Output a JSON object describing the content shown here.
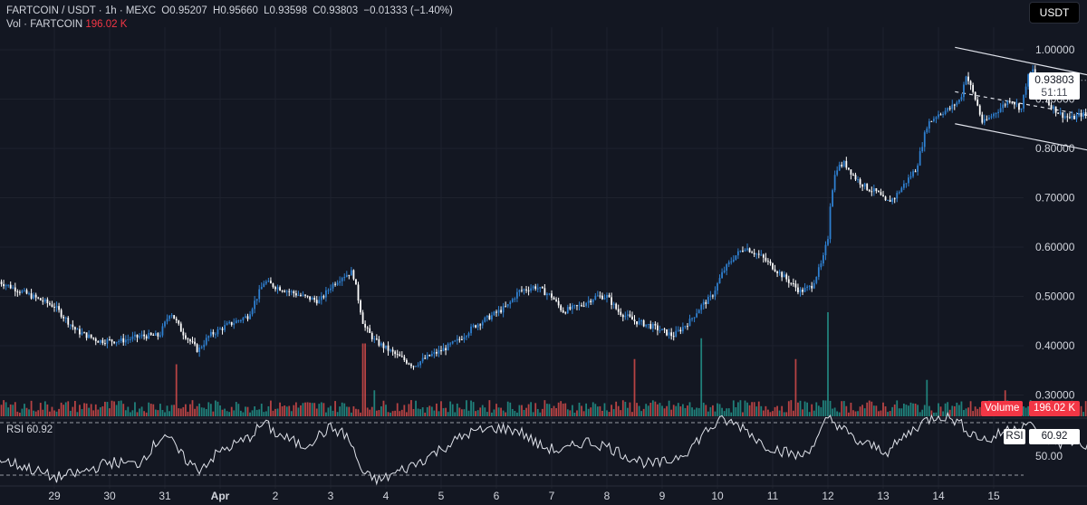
{
  "header": {
    "symbol": "FARTCOIN / USDT · 1h · MEXC",
    "open_label": "O",
    "open": "0.95207",
    "high_label": "H",
    "high": "0.95660",
    "low_label": "L",
    "low": "0.93598",
    "close_label": "C",
    "close": "0.93803",
    "change": "−0.01333 (−1.40%)",
    "volume_label": "Vol · FARTCOIN",
    "volume_value": "196.02 K"
  },
  "currency_button": "USDT",
  "last_price_tag": "0.93803",
  "countdown": "51:11",
  "volume_axis_label": "Volume",
  "volume_axis_value": "196.02 K",
  "rsi": {
    "name": "RSI",
    "value": "60.92",
    "axis_tick": "50.00"
  },
  "colors": {
    "background": "#131722",
    "up": "#2f80d1",
    "down": "#ffffff",
    "vol_up": "#26a69a",
    "vol_down": "#ef5350",
    "grid": "#1e222d",
    "text": "#d1d4dc"
  },
  "chart_data": {
    "type": "candlestick",
    "pair": "FARTCOIN / USDT",
    "interval": "1h",
    "exchange": "MEXC",
    "ylim": [
      0.28,
      1.05
    ],
    "y_ticks": [
      "1.00000",
      "0.90000",
      "0.80000",
      "0.70000",
      "0.60000",
      "0.50000",
      "0.40000",
      "0.30000"
    ],
    "x_ticks": [
      "29",
      "30",
      "31",
      "Apr",
      "2",
      "3",
      "4",
      "5",
      "6",
      "7",
      "8",
      "9",
      "10",
      "11",
      "12",
      "13",
      "14",
      "15"
    ],
    "x_range_days": [
      28.0,
      15.1
    ],
    "price_path": [
      [
        28.0,
        0.53
      ],
      [
        28.6,
        0.5
      ],
      [
        29.0,
        0.48
      ],
      [
        29.4,
        0.43
      ],
      [
        29.8,
        0.41
      ],
      [
        30.2,
        0.41
      ],
      [
        30.6,
        0.42
      ],
      [
        30.9,
        0.42
      ],
      [
        31.1,
        0.47
      ],
      [
        31.3,
        0.43
      ],
      [
        31.6,
        0.39
      ],
      [
        31.8,
        0.42
      ],
      [
        32.1,
        0.44
      ],
      [
        32.5,
        0.46
      ],
      [
        32.8,
        0.53
      ],
      [
        33.0,
        0.52
      ],
      [
        33.5,
        0.5
      ],
      [
        33.8,
        0.49
      ],
      [
        34.0,
        0.52
      ],
      [
        34.2,
        0.54
      ],
      [
        34.4,
        0.55
      ],
      [
        34.6,
        0.44
      ],
      [
        34.8,
        0.41
      ],
      [
        35.2,
        0.38
      ],
      [
        35.5,
        0.36
      ],
      [
        35.8,
        0.38
      ],
      [
        36.0,
        0.39
      ],
      [
        36.3,
        0.41
      ],
      [
        36.6,
        0.44
      ],
      [
        36.9,
        0.46
      ],
      [
        37.2,
        0.48
      ],
      [
        37.4,
        0.51
      ],
      [
        37.7,
        0.52
      ],
      [
        38.0,
        0.5
      ],
      [
        38.2,
        0.47
      ],
      [
        38.5,
        0.48
      ],
      [
        38.8,
        0.5
      ],
      [
        39.0,
        0.5
      ],
      [
        39.2,
        0.47
      ],
      [
        39.5,
        0.45
      ],
      [
        39.8,
        0.44
      ],
      [
        40.0,
        0.43
      ],
      [
        40.2,
        0.42
      ],
      [
        40.5,
        0.45
      ],
      [
        40.7,
        0.48
      ],
      [
        40.9,
        0.5
      ],
      [
        41.1,
        0.55
      ],
      [
        41.3,
        0.58
      ],
      [
        41.5,
        0.6
      ],
      [
        41.8,
        0.58
      ],
      [
        42.0,
        0.56
      ],
      [
        42.3,
        0.53
      ],
      [
        42.5,
        0.51
      ],
      [
        42.7,
        0.52
      ],
      [
        42.9,
        0.57
      ],
      [
        43.0,
        0.62
      ],
      [
        43.05,
        0.7
      ],
      [
        43.15,
        0.76
      ],
      [
        43.3,
        0.77
      ],
      [
        43.5,
        0.74
      ],
      [
        43.7,
        0.72
      ],
      [
        43.9,
        0.71
      ],
      [
        44.05,
        0.69
      ],
      [
        44.2,
        0.7
      ],
      [
        44.4,
        0.73
      ],
      [
        44.6,
        0.76
      ],
      [
        44.8,
        0.85
      ],
      [
        45.0,
        0.87
      ],
      [
        45.2,
        0.88
      ],
      [
        45.4,
        0.9
      ],
      [
        45.5,
        0.95
      ],
      [
        45.6,
        0.92
      ],
      [
        45.7,
        0.89
      ],
      [
        45.8,
        0.85
      ],
      [
        45.9,
        0.86
      ],
      [
        46.1,
        0.88
      ],
      [
        46.3,
        0.9
      ],
      [
        46.5,
        0.88
      ],
      [
        46.6,
        0.94
      ],
      [
        46.7,
        0.96
      ],
      [
        46.9,
        0.92
      ],
      [
        47.0,
        0.89
      ],
      [
        47.2,
        0.87
      ],
      [
        47.4,
        0.86
      ],
      [
        47.6,
        0.87
      ],
      [
        47.8,
        0.86
      ],
      [
        48.0,
        0.83
      ],
      [
        48.1,
        0.8
      ],
      [
        48.2,
        0.79
      ],
      [
        48.35,
        0.81
      ],
      [
        48.5,
        0.84
      ],
      [
        48.7,
        0.86
      ],
      [
        48.8,
        0.87
      ],
      [
        49.0,
        0.85
      ],
      [
        49.1,
        0.88
      ],
      [
        49.25,
        0.93
      ],
      [
        49.4,
        0.88
      ],
      [
        49.5,
        0.92
      ],
      [
        49.6,
        0.94
      ],
      [
        49.7,
        0.94
      ]
    ],
    "volume_spikes": [
      [
        31.2,
        0.5
      ],
      [
        34.6,
        0.7
      ],
      [
        34.8,
        0.25
      ],
      [
        39.5,
        0.55
      ],
      [
        40.7,
        0.75
      ],
      [
        42.4,
        0.55
      ],
      [
        43.0,
        1.0
      ],
      [
        44.8,
        0.35
      ],
      [
        46.2,
        0.25
      ],
      [
        48.6,
        0.3
      ]
    ],
    "volume_current": "196.02 K",
    "channel": {
      "upper": [
        [
          45.3,
          1.005
        ],
        [
          49.8,
          0.9
        ]
      ],
      "middle": [
        [
          45.3,
          0.915
        ],
        [
          49.8,
          0.825
        ]
      ],
      "lower": [
        [
          45.3,
          0.85
        ],
        [
          49.8,
          0.75
        ]
      ]
    },
    "rsi_series": {
      "name": "RSI",
      "levels": [
        70,
        30
      ],
      "last": 60.92,
      "anchors": [
        [
          28.0,
          42
        ],
        [
          28.5,
          36
        ],
        [
          29.0,
          28
        ],
        [
          29.5,
          32
        ],
        [
          30.0,
          40
        ],
        [
          30.5,
          38
        ],
        [
          31.0,
          62
        ],
        [
          31.3,
          45
        ],
        [
          31.6,
          34
        ],
        [
          32.0,
          48
        ],
        [
          32.5,
          58
        ],
        [
          32.8,
          70
        ],
        [
          33.0,
          62
        ],
        [
          33.5,
          52
        ],
        [
          34.0,
          66
        ],
        [
          34.3,
          60
        ],
        [
          34.6,
          30
        ],
        [
          34.9,
          26
        ],
        [
          35.2,
          32
        ],
        [
          35.6,
          40
        ],
        [
          36.0,
          50
        ],
        [
          36.5,
          62
        ],
        [
          37.0,
          66
        ],
        [
          37.4,
          64
        ],
        [
          37.8,
          52
        ],
        [
          38.2,
          48
        ],
        [
          38.6,
          56
        ],
        [
          39.0,
          52
        ],
        [
          39.4,
          44
        ],
        [
          39.8,
          38
        ],
        [
          40.1,
          40
        ],
        [
          40.5,
          50
        ],
        [
          40.8,
          64
        ],
        [
          41.1,
          72
        ],
        [
          41.5,
          66
        ],
        [
          41.8,
          54
        ],
        [
          42.2,
          48
        ],
        [
          42.5,
          44
        ],
        [
          42.8,
          56
        ],
        [
          43.0,
          74
        ],
        [
          43.2,
          68
        ],
        [
          43.5,
          56
        ],
        [
          43.8,
          52
        ],
        [
          44.1,
          48
        ],
        [
          44.4,
          60
        ],
        [
          44.7,
          70
        ],
        [
          45.0,
          76
        ],
        [
          45.3,
          72
        ],
        [
          45.6,
          62
        ],
        [
          45.9,
          56
        ],
        [
          46.2,
          64
        ],
        [
          46.6,
          70
        ],
        [
          46.9,
          58
        ],
        [
          47.2,
          54
        ],
        [
          47.5,
          56
        ],
        [
          47.9,
          48
        ],
        [
          48.2,
          40
        ],
        [
          48.5,
          52
        ],
        [
          48.8,
          56
        ],
        [
          49.1,
          50
        ],
        [
          49.35,
          62
        ],
        [
          49.6,
          60.92
        ]
      ]
    }
  }
}
